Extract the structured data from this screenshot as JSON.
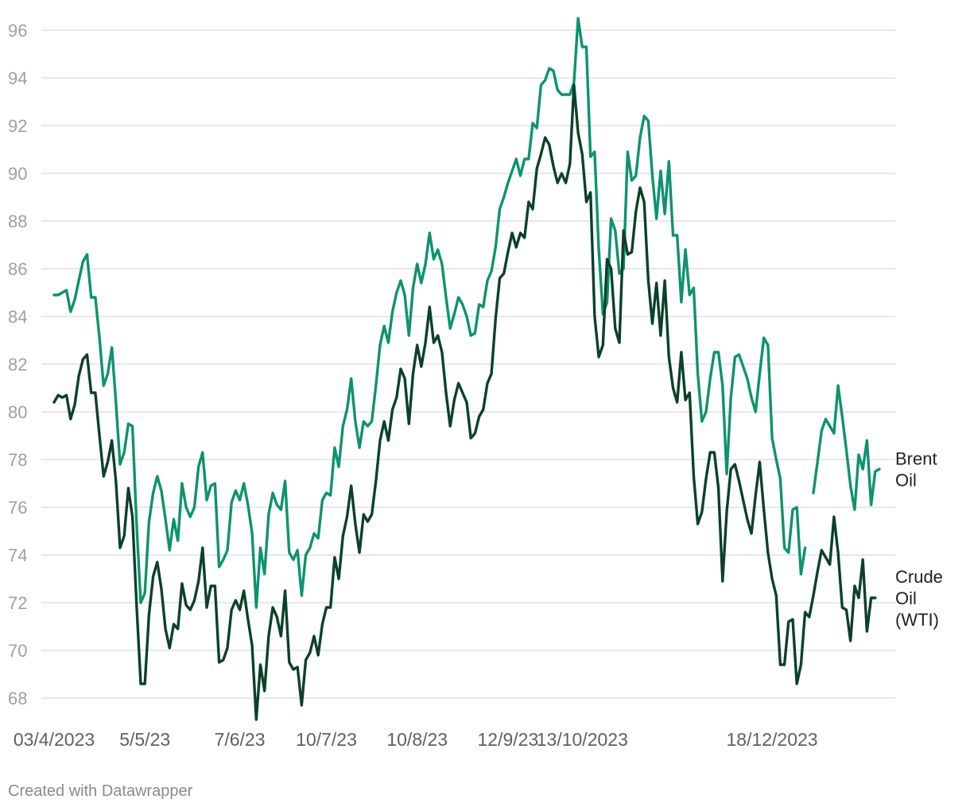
{
  "credit": "Created with Datawrapper",
  "colors": {
    "brent": "#0c936f",
    "wti": "#0b4129",
    "grid": "#e1e1e1",
    "tick": "#a0a0a0"
  },
  "chart_data": {
    "type": "line",
    "title": "",
    "xlabel": "",
    "ylabel": "",
    "ylim": [
      67,
      96.8
    ],
    "y_ticks": [
      68,
      70,
      72,
      74,
      76,
      78,
      80,
      82,
      84,
      86,
      88,
      90,
      92,
      94,
      96
    ],
    "grid": true,
    "legend": "series labels at right end of lines",
    "x_ticks": [
      {
        "label": "03/4/2023",
        "index": 0
      },
      {
        "label": "5/5/23",
        "index": 22
      },
      {
        "label": "7/6/23",
        "index": 45
      },
      {
        "label": "10/7/23",
        "index": 66
      },
      {
        "label": "10/8/23",
        "index": 88
      },
      {
        "label": "12/9/23",
        "index": 110
      },
      {
        "label": "13/10/2023",
        "index": 128
      },
      {
        "label": "18/12/2023",
        "index": 174
      }
    ],
    "series": [
      {
        "name": "Brent Oil",
        "color": "#0c936f",
        "values": [
          84.9,
          84.9,
          85.0,
          85.1,
          84.2,
          84.7,
          85.5,
          86.3,
          86.6,
          84.8,
          84.8,
          83.1,
          81.1,
          81.6,
          82.7,
          80.4,
          77.8,
          78.3,
          79.5,
          79.4,
          75.3,
          72.0,
          72.4,
          75.4,
          76.6,
          77.3,
          76.7,
          75.5,
          74.2,
          75.5,
          74.6,
          77.0,
          76.0,
          75.6,
          76.0,
          77.7,
          78.3,
          76.3,
          76.9,
          77.0,
          73.5,
          73.8,
          74.2,
          76.2,
          76.7,
          76.3,
          77.0,
          76.1,
          74.9,
          71.8,
          74.3,
          73.2,
          75.7,
          76.6,
          76.1,
          75.9,
          77.1,
          74.1,
          73.8,
          74.2,
          72.3,
          74.0,
          74.3,
          74.9,
          74.7,
          76.3,
          76.6,
          76.5,
          78.5,
          77.7,
          79.4,
          80.1,
          81.4,
          79.6,
          78.5,
          79.6,
          79.4,
          79.6,
          81.1,
          82.8,
          83.6,
          82.9,
          84.2,
          85.0,
          85.5,
          84.9,
          83.2,
          85.2,
          86.2,
          85.4,
          86.2,
          87.5,
          86.4,
          86.8,
          86.2,
          84.8,
          83.5,
          84.1,
          84.8,
          84.5,
          84.0,
          83.2,
          83.3,
          84.5,
          84.4,
          85.5,
          85.9,
          86.9,
          88.5,
          89.0,
          89.6,
          90.1,
          90.6,
          89.9,
          90.6,
          90.6,
          92.1,
          91.9,
          93.7,
          93.9,
          94.4,
          94.3,
          93.5,
          93.3,
          93.3,
          93.3,
          93.8,
          96.5,
          95.3,
          95.3,
          90.7,
          90.9,
          86.8,
          84.1,
          84.6,
          88.1,
          87.6,
          85.8,
          86.0,
          90.9,
          89.7,
          89.9,
          91.5,
          92.4,
          92.2,
          89.9,
          88.1,
          90.1,
          88.3,
          90.5,
          87.4,
          87.4,
          84.6,
          86.8,
          84.9,
          85.2,
          81.6,
          79.6,
          80.0,
          81.4,
          82.5,
          82.5,
          81.1,
          77.4,
          80.6,
          82.3,
          82.4,
          81.9,
          81.4,
          80.6,
          80.0,
          81.6,
          83.1,
          82.8,
          78.9,
          78.0,
          77.2,
          74.3,
          74.1,
          75.9,
          76.0,
          73.2,
          74.3,
          null,
          76.6,
          77.9,
          79.2,
          79.7,
          79.4,
          79.1,
          81.1,
          79.8,
          78.4,
          76.9,
          75.9,
          78.2,
          77.6,
          78.8,
          76.1,
          77.5,
          77.6
        ]
      },
      {
        "name": "Crude Oil (WTI)",
        "color": "#0b4129",
        "values": [
          80.4,
          80.7,
          80.6,
          80.7,
          79.7,
          80.3,
          81.5,
          82.2,
          82.4,
          80.8,
          80.8,
          79.0,
          77.3,
          77.9,
          78.8,
          77.1,
          74.3,
          74.8,
          76.8,
          75.6,
          71.9,
          68.6,
          68.6,
          71.5,
          73.1,
          73.7,
          72.6,
          70.9,
          70.1,
          71.1,
          70.9,
          72.8,
          71.9,
          71.7,
          72.1,
          72.9,
          74.3,
          71.8,
          72.7,
          72.7,
          69.5,
          69.6,
          70.1,
          71.7,
          72.1,
          71.7,
          72.5,
          71.3,
          70.2,
          67.1,
          69.4,
          68.3,
          70.6,
          71.8,
          71.4,
          70.6,
          72.5,
          69.5,
          69.2,
          69.3,
          67.7,
          69.6,
          69.9,
          70.6,
          69.8,
          71.1,
          71.8,
          71.8,
          73.9,
          73.0,
          74.8,
          75.6,
          76.9,
          75.3,
          74.1,
          75.7,
          75.4,
          75.7,
          77.1,
          78.8,
          79.6,
          78.8,
          80.1,
          80.6,
          81.8,
          81.4,
          79.5,
          81.6,
          82.8,
          81.9,
          82.9,
          84.4,
          82.9,
          83.2,
          82.5,
          80.8,
          79.4,
          80.5,
          81.2,
          80.8,
          80.4,
          78.9,
          79.1,
          79.8,
          80.1,
          81.2,
          81.6,
          83.9,
          85.6,
          85.8,
          86.7,
          87.5,
          86.9,
          87.5,
          87.3,
          88.8,
          88.5,
          90.2,
          90.8,
          91.5,
          91.2,
          90.3,
          89.6,
          90.0,
          89.6,
          90.4,
          93.7,
          91.7,
          90.8,
          88.8,
          89.2,
          84.0,
          82.3,
          82.8,
          86.4,
          86.0,
          83.5,
          82.9,
          87.6,
          86.6,
          86.7,
          88.4,
          89.4,
          88.8,
          85.5,
          83.7,
          85.4,
          83.2,
          85.5,
          82.3,
          81.0,
          80.4,
          82.5,
          80.5,
          80.8,
          77.3,
          75.3,
          75.8,
          77.2,
          78.3,
          78.3,
          76.8,
          72.9,
          75.8,
          77.6,
          77.8,
          77.1,
          76.3,
          75.5,
          74.9,
          76.5,
          77.9,
          75.9,
          74.1,
          73.0,
          72.3,
          69.4,
          69.4,
          71.2,
          71.3,
          68.6,
          69.4,
          71.6,
          71.4,
          72.3,
          73.3,
          74.2,
          73.9,
          73.6,
          75.6,
          74.1,
          71.8,
          71.7,
          70.4,
          72.7,
          72.2,
          73.8,
          70.8,
          72.2,
          72.2
        ]
      }
    ]
  }
}
